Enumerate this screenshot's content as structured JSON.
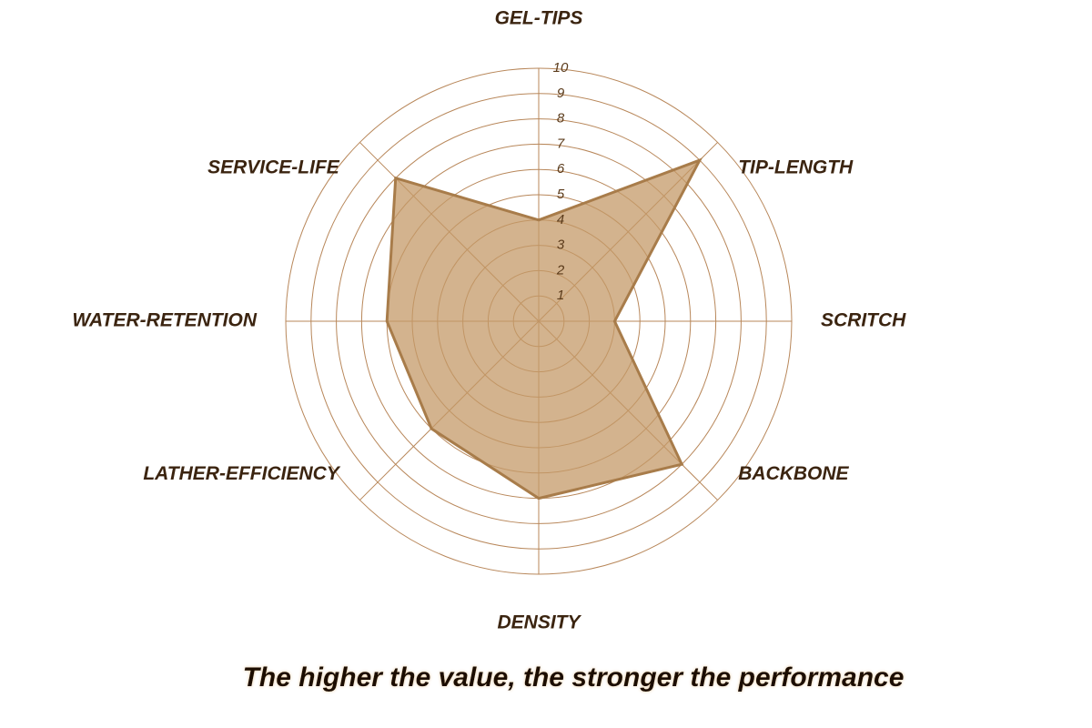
{
  "chart_data": {
    "type": "radar",
    "categories": [
      "GEL-TIPS",
      "TIP-LENGTH",
      "SCRITCH",
      "BACKBONE",
      "DENSITY",
      "LATHER-EFFICIENCY",
      "WATER-RETENTION",
      "SERVICE-LIFE"
    ],
    "values": [
      4,
      9,
      3,
      8,
      7,
      6,
      6,
      8
    ],
    "color": "#a87c4a",
    "rlim": [
      0,
      10
    ],
    "rticks": [
      1,
      2,
      3,
      4,
      5,
      6,
      7,
      8,
      9,
      10
    ],
    "grid": true,
    "annotation": "The higher the value, the stronger the performance"
  }
}
